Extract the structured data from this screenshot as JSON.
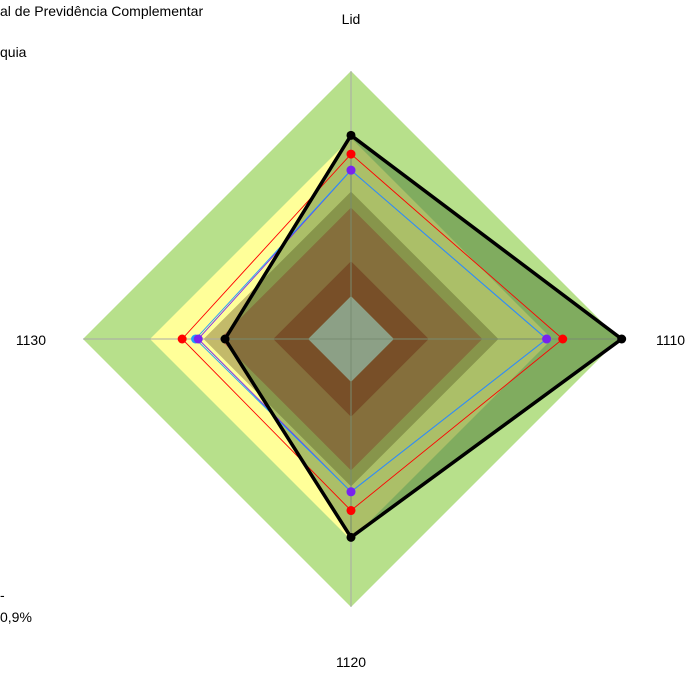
{
  "chart_data": {
    "type": "radar",
    "title": "al de Previdência Complementar",
    "subtitle": "quia",
    "axes": [
      "Lid",
      "1110",
      "1120",
      "1130"
    ],
    "footnote_line1": "-",
    "footnote_line2": "0,9%",
    "zones": [
      {
        "level": 1.0,
        "color": "#b7e08b"
      },
      {
        "level": 0.75,
        "color": "#ffff99"
      },
      {
        "level": 0.55,
        "color": "#c3ba6a"
      },
      {
        "level": 0.49,
        "color": "#c07a50"
      },
      {
        "level": 0.29,
        "color": "#aa4530"
      },
      {
        "level": 0.16,
        "color": "#cccccc"
      }
    ],
    "series": [
      {
        "name": "",
        "color": "#000000",
        "fill": "#2e5e1f",
        "values": [
          0.76,
          1.01,
          0.74,
          0.47
        ]
      },
      {
        "name": "",
        "color": "#ff0000",
        "values": [
          0.69,
          0.79,
          0.64,
          0.63
        ]
      },
      {
        "name": "",
        "color": "#1f9bff",
        "values": [
          0.63,
          0.73,
          0.57,
          0.58
        ]
      },
      {
        "name": "",
        "color": "#7a22ee",
        "values": [
          0.63,
          0.73,
          0.57,
          0.57
        ]
      }
    ]
  }
}
